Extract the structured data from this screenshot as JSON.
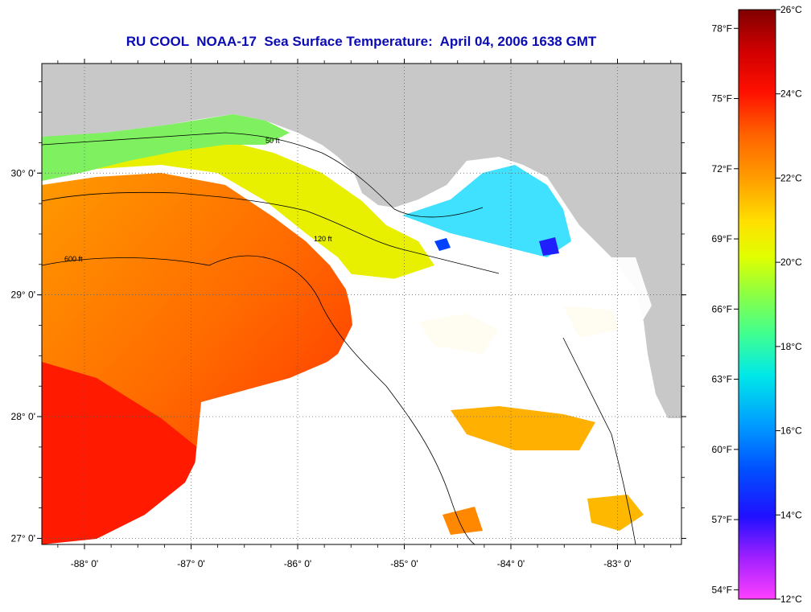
{
  "title": "RU COOL  NOAA-17  Sea Surface Temperature:  April 04, 2006 1638 GMT",
  "map": {
    "lon_range": [
      -88.4,
      -82.4
    ],
    "lat_range": [
      26.95,
      30.9
    ],
    "lon_ticks": [
      {
        "value": -88,
        "label": "-88° 0'"
      },
      {
        "value": -87,
        "label": "-87° 0'"
      },
      {
        "value": -86,
        "label": "-86° 0'"
      },
      {
        "value": -85,
        "label": "-85° 0'"
      },
      {
        "value": -84,
        "label": "-84° 0'"
      },
      {
        "value": -83,
        "label": "-83° 0'"
      }
    ],
    "lat_ticks": [
      {
        "value": 27,
        "label": "27° 0'"
      },
      {
        "value": 28,
        "label": "28° 0'"
      },
      {
        "value": 29,
        "label": "29° 0'"
      },
      {
        "value": 30,
        "label": "30° 0'"
      }
    ],
    "grid": true,
    "land_color": "#c8c8c8",
    "cloud_color": "#ffffff",
    "contour_labels": [
      "50 ft",
      "120 ft",
      "600 ft"
    ]
  },
  "colorbar": {
    "range_c": [
      12,
      26
    ],
    "celsius_labels": [
      {
        "value": 26,
        "label": "26°C"
      },
      {
        "value": 24,
        "label": "24°C"
      },
      {
        "value": 22,
        "label": "22°C"
      },
      {
        "value": 20,
        "label": "20°C"
      },
      {
        "value": 18,
        "label": "18°C"
      },
      {
        "value": 16,
        "label": "16°C"
      },
      {
        "value": 14,
        "label": "14°C"
      },
      {
        "value": 12,
        "label": "12°C"
      }
    ],
    "fahrenheit_labels": [
      {
        "value": 78,
        "label": "78°F"
      },
      {
        "value": 75,
        "label": "75°F"
      },
      {
        "value": 72,
        "label": "72°F"
      },
      {
        "value": 69,
        "label": "69°F"
      },
      {
        "value": 66,
        "label": "66°F"
      },
      {
        "value": 63,
        "label": "63°F"
      },
      {
        "value": 60,
        "label": "60°F"
      },
      {
        "value": 57,
        "label": "57°F"
      },
      {
        "value": 54,
        "label": "54°F"
      }
    ],
    "colors": [
      "#ff40ff",
      "#8020ff",
      "#0000ff",
      "#0080ff",
      "#00e0ff",
      "#40ffa0",
      "#a0ff40",
      "#ffff00",
      "#ffc000",
      "#ff8000",
      "#ff2000",
      "#c00000",
      "#800000"
    ]
  }
}
